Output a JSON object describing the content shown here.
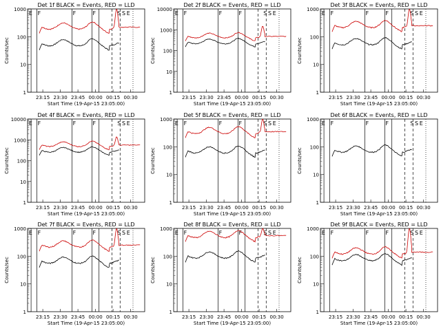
{
  "chart_data": [
    {
      "type": "line",
      "title": "Det 1f BLACK = Events, RED = LLD",
      "xlabel": "Start Time (19-Apr-15 23:05:00)",
      "ylabel": "Counts/sec",
      "yscale": "log",
      "ylim": [
        1,
        1000
      ],
      "y_ticks": [
        "1",
        "10",
        "100",
        "1000"
      ],
      "x_ticks": [
        "23:15",
        "23:30",
        "23:45",
        "00:00",
        "00:15",
        "00:30"
      ],
      "markers": [
        "E",
        "F",
        "F",
        "F",
        "S",
        "S",
        "E"
      ],
      "series": [
        {
          "name": "Events",
          "color": "#000000",
          "base": 55,
          "peak": 55
        },
        {
          "name": "LLD",
          "color": "#cc0000",
          "base": 220,
          "peak": 1000
        }
      ]
    },
    {
      "type": "line",
      "title": "Det 2f BLACK = Events, RED = LLD",
      "xlabel": "Start Time (19-Apr-15 23:05:00)",
      "ylabel": "Counts/sec",
      "yscale": "log",
      "ylim": [
        1,
        10000
      ],
      "y_ticks": [
        "1",
        "10",
        "100",
        "1000",
        "10000"
      ],
      "x_ticks": [
        "23:15",
        "23:30",
        "23:45",
        "00:00",
        "00:15",
        "00:30"
      ],
      "markers": [
        "E",
        "F",
        "F",
        "F",
        "S",
        "S",
        "E"
      ],
      "series": [
        {
          "name": "Events",
          "color": "#000000",
          "base": 250,
          "peak": 250
        },
        {
          "name": "LLD",
          "color": "#cc0000",
          "base": 480,
          "peak": 1500
        }
      ]
    },
    {
      "type": "line",
      "title": "Det 3f BLACK = Events, RED = LLD",
      "xlabel": "Start Time (19-Apr-15 23:05:00)",
      "ylabel": "Counts/sec",
      "yscale": "log",
      "ylim": [
        1,
        1000
      ],
      "y_ticks": [
        "1",
        "10",
        "100",
        "1000"
      ],
      "x_ticks": [
        "23:15",
        "23:30",
        "23:45",
        "00:00",
        "00:15",
        "00:30"
      ],
      "markers": [
        "E",
        "F",
        "F",
        "F",
        "S",
        "S",
        "E"
      ],
      "series": [
        {
          "name": "Events",
          "color": "#000000",
          "base": 60,
          "peak": 60
        },
        {
          "name": "LLD",
          "color": "#cc0000",
          "base": 250,
          "peak": 1000
        }
      ]
    },
    {
      "type": "line",
      "title": "Det 4f BLACK = Events, RED = LLD",
      "xlabel": "Start Time (19-Apr-15 23:05:00)",
      "ylabel": "Counts/sec",
      "yscale": "log",
      "ylim": [
        1,
        10000
      ],
      "y_ticks": [
        "1",
        "10",
        "100",
        "1000",
        "10000"
      ],
      "x_ticks": [
        "23:15",
        "23:30",
        "23:45",
        "00:00",
        "00:15",
        "00:30"
      ],
      "markers": [
        "E",
        "F",
        "F",
        "F",
        "S",
        "S",
        "E"
      ],
      "series": [
        {
          "name": "Events",
          "color": "#000000",
          "base": 300,
          "peak": 300
        },
        {
          "name": "LLD",
          "color": "#cc0000",
          "base": 560,
          "peak": 1400
        }
      ]
    },
    {
      "type": "line",
      "title": "Det 5f BLACK = Events, RED = LLD",
      "xlabel": "Start Time (19-Apr-15 23:05:00)",
      "ylabel": "Counts/sec",
      "yscale": "log",
      "ylim": [
        1,
        1000
      ],
      "y_ticks": [
        "1",
        "10",
        "100",
        "1000"
      ],
      "x_ticks": [
        "23:15",
        "23:30",
        "23:45",
        "00:00",
        "00:15",
        "00:30"
      ],
      "markers": [
        "E",
        "F",
        "F",
        "F",
        "S",
        "S",
        "E"
      ],
      "series": [
        {
          "name": "Events",
          "color": "#000000",
          "base": 70,
          "peak": 70
        },
        {
          "name": "LLD",
          "color": "#cc0000",
          "base": 350,
          "peak": 1000
        }
      ]
    },
    {
      "type": "line",
      "title": "Det 6f BLACK = Events, RED = LLD",
      "xlabel": "Start Time (19-Apr-15 23:05:00)",
      "ylabel": "Counts/sec",
      "yscale": "log",
      "ylim": [
        1,
        1000
      ],
      "y_ticks": [
        "1",
        "10",
        "100",
        "1000"
      ],
      "x_ticks": [
        "23:15",
        "23:30",
        "23:45",
        "00:00",
        "00:15",
        "00:30"
      ],
      "markers": [
        "E",
        "F",
        "F",
        "F",
        "S",
        "S",
        "E"
      ],
      "series": [
        {
          "name": "Events",
          "color": "#000000",
          "base": 75,
          "peak": 75
        }
      ]
    },
    {
      "type": "line",
      "title": "Det 7f BLACK = Events, RED = LLD",
      "xlabel": "Start Time (19-Apr-15 23:05:00)",
      "ylabel": "Counts/sec",
      "yscale": "log",
      "ylim": [
        1,
        1000
      ],
      "y_ticks": [
        "1",
        "10",
        "100",
        "1000"
      ],
      "x_ticks": [
        "23:15",
        "23:30",
        "23:45",
        "00:00",
        "00:15",
        "00:30"
      ],
      "markers": [
        "E",
        "F",
        "F",
        "F",
        "S",
        "S",
        "E"
      ],
      "series": [
        {
          "name": "Events",
          "color": "#000000",
          "base": 65,
          "peak": 65
        },
        {
          "name": "LLD",
          "color": "#cc0000",
          "base": 250,
          "peak": 1000
        }
      ]
    },
    {
      "type": "line",
      "title": "Det 8f BLACK = Events, RED = LLD",
      "xlabel": "Start Time (19-Apr-15 23:05:00)",
      "ylabel": "Counts/sec",
      "yscale": "log",
      "ylim": [
        1,
        1000
      ],
      "y_ticks": [
        "1",
        "10",
        "100",
        "1000"
      ],
      "x_ticks": [
        "23:15",
        "23:30",
        "23:45",
        "00:00",
        "00:15",
        "00:30"
      ],
      "markers": [
        "E",
        "F",
        "F",
        "F",
        "S",
        "S",
        "E"
      ],
      "series": [
        {
          "name": "Events",
          "color": "#000000",
          "base": 100,
          "peak": 100
        },
        {
          "name": "LLD",
          "color": "#cc0000",
          "base": 550,
          "peak": 1000
        }
      ]
    },
    {
      "type": "line",
      "title": "Det 9f BLACK = Events, RED = LLD",
      "xlabel": "Start Time (19-Apr-15 23:05:00)",
      "ylabel": "Counts/sec",
      "yscale": "log",
      "ylim": [
        1,
        1000
      ],
      "y_ticks": [
        "1",
        "10",
        "100",
        "1000"
      ],
      "x_ticks": [
        "23:15",
        "23:30",
        "23:45",
        "00:00",
        "00:15",
        "00:30"
      ],
      "markers": [
        "E",
        "F",
        "F",
        "F",
        "S",
        "S",
        "E"
      ],
      "series": [
        {
          "name": "Events",
          "color": "#000000",
          "base": 80,
          "peak": 80
        },
        {
          "name": "LLD",
          "color": "#cc0000",
          "base": 140,
          "peak": 1000
        }
      ]
    }
  ]
}
